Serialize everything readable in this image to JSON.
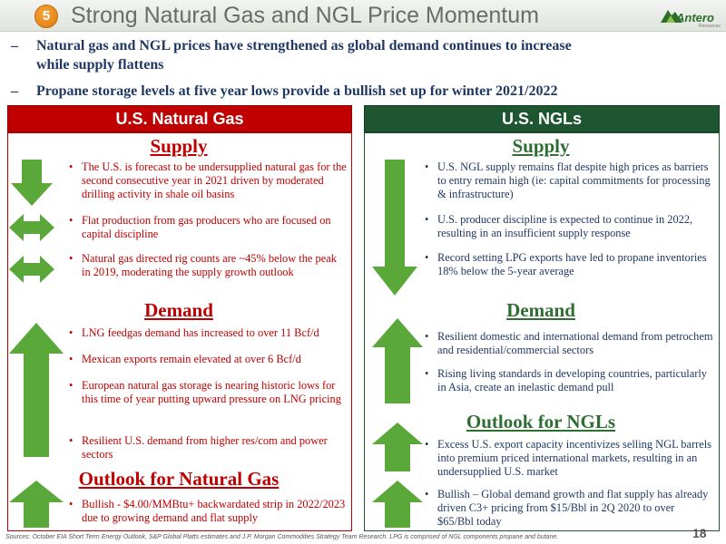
{
  "header": {
    "badge": "5",
    "title": "Strong Natural Gas and NGL Price Momentum",
    "logo_text": "Antero",
    "logo_sub": "Resources"
  },
  "top_bullets": [
    {
      "dash": "–",
      "text": "Natural gas and NGL prices have strengthened as global demand continues to increase"
    },
    {
      "dash": "",
      "text": "while supply flattens"
    },
    {
      "dash": "–",
      "text": "Propane storage levels at five year lows provide a bullish set up for winter 2021/2022"
    }
  ],
  "left_panel": {
    "title": "U.S. Natural Gas",
    "supply_title": "Supply",
    "supply": [
      "The U.S. is forecast to be undersupplied natural gas for the second consecutive year in 2021 driven by moderated drilling activity in shale oil basins",
      "Flat production from gas producers who are focused on capital discipline",
      "Natural gas directed rig counts are ~45% below the peak in 2019, moderating the supply growth outlook"
    ],
    "demand_title": "Demand",
    "demand": [
      "LNG feedgas demand has increased to over 11 Bcf/d",
      "Mexican exports remain elevated at over 6 Bcf/d",
      "European natural gas storage is nearing historic lows for this time of year putting upward pressure on LNG pricing",
      "Resilient U.S. demand from higher res/com and power sectors"
    ],
    "outlook_title": "Outlook for Natural Gas",
    "outlook": [
      "Bullish - $4.00/MMBtu+ backwardated strip in 2022/2023 due to growing demand and flat supply"
    ]
  },
  "right_panel": {
    "title": "U.S. NGLs",
    "supply_title": "Supply",
    "supply": [
      "U.S. NGL supply remains flat despite high prices as barriers to entry remain high (ie: capital commitments for processing & infrastructure)",
      "U.S. producer discipline is expected to continue in 2022, resulting in an insufficient supply response",
      "Record setting LPG exports have led to propane inventories 18% below the 5-year average"
    ],
    "demand_title": "Demand",
    "demand": [
      "Resilient domestic and international demand from petrochem and residential/commercial sectors",
      "Rising living standards in developing countries, particularly in Asia, create an inelastic demand pull"
    ],
    "outlook_title": "Outlook for NGLs",
    "outlook": [
      "Excess U.S. export capacity incentivizes selling NGL barrels into premium priced international markets, resulting in an undersupplied U.S. market",
      "Bullish – Global demand growth and flat supply has already driven C3+ pricing from $15/Bbl in 2Q 2020 to over $65/Bbl today"
    ]
  },
  "bullet_char": "•",
  "footer": "Sources: October EIA Short Term Energy Outlook, S&P Global Platts estimates and J.P. Morgan Commodities Strategy Team Research.  LPG is comprised of NGL components propane and butane.",
  "page_number": "18",
  "colors": {
    "left_accent": "#c00000",
    "right_accent": "#1e5631",
    "arrow_green": "#5aa83a",
    "title_gray": "#6b6b6b",
    "navy": "#1f3864"
  },
  "icons": [
    "down-arrow-icon",
    "left-right-arrow-icon",
    "up-arrow-icon"
  ]
}
